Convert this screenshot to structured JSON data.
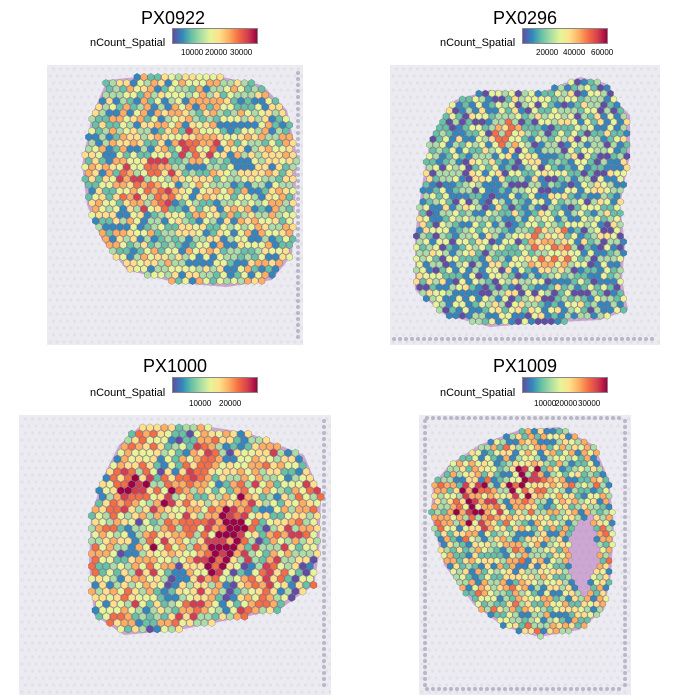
{
  "panels": [
    {
      "sample": "PX0922",
      "legend_label": "nCount_Spatial",
      "ticks": [
        "10000",
        "20000",
        "30000"
      ],
      "tick_values": [
        10000,
        20000,
        30000
      ],
      "range": [
        3000,
        37000
      ]
    },
    {
      "sample": "PX0296",
      "legend_label": "nCount_Spatial",
      "ticks": [
        "20000",
        "40000",
        "60000"
      ],
      "tick_values": [
        20000,
        40000,
        60000
      ],
      "range": [
        5000,
        70000
      ]
    },
    {
      "sample": "PX1000",
      "legend_label": "nCount_Spatial",
      "ticks": [
        "10000",
        "20000"
      ],
      "tick_values": [
        10000,
        20000
      ],
      "range": [
        2000,
        30000
      ]
    },
    {
      "sample": "PX1009",
      "legend_label": "nCount_Spatial",
      "ticks": [
        "10000",
        "20000",
        "30000"
      ],
      "tick_values": [
        10000,
        20000,
        30000
      ],
      "range": [
        3000,
        38000
      ]
    }
  ],
  "colors": {
    "palette": [
      "#5e4fa2",
      "#3288bd",
      "#66c2a5",
      "#abdda4",
      "#e6f598",
      "#fee08b",
      "#fdae61",
      "#f46d43",
      "#d53e4f",
      "#9e0142"
    ],
    "slide_background": "#ecebf1",
    "tissue_stain": "#b06fb8"
  }
}
